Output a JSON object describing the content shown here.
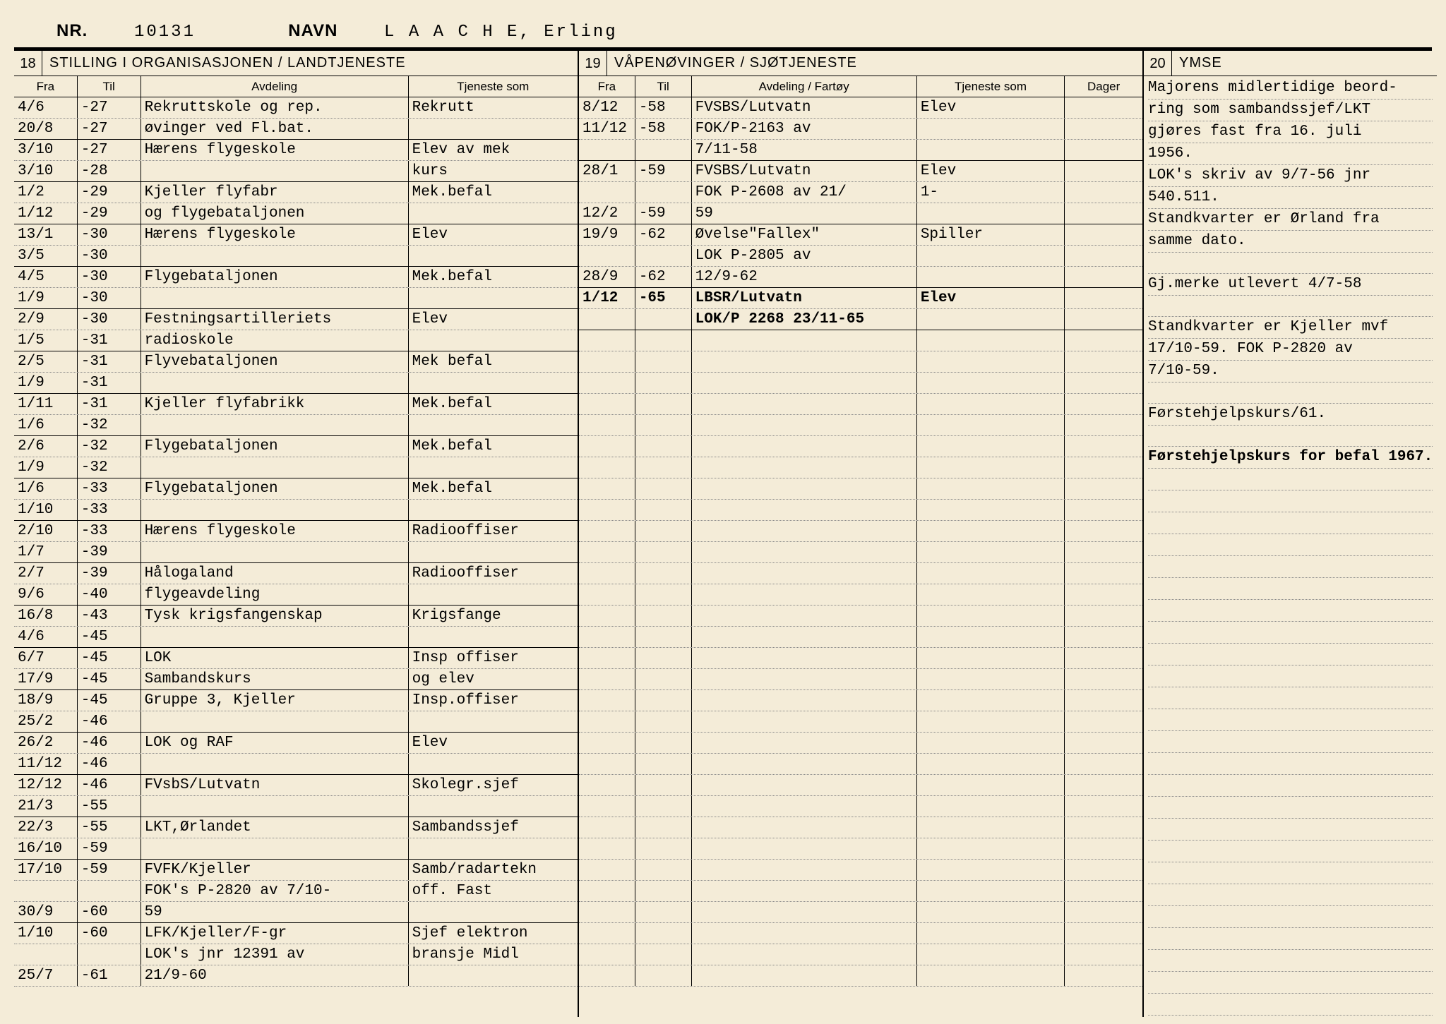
{
  "header": {
    "nr_label": "NR.",
    "nr_value": "10131",
    "navn_label": "NAVN",
    "navn_value": "L A A C H E, Erling"
  },
  "section18": {
    "num": "18",
    "title": "STILLING I ORGANISASJONEN / LANDTJENESTE",
    "cols": {
      "fra": "Fra",
      "til": "Til",
      "avdeling": "Avdeling",
      "tjeneste": "Tjeneste som"
    },
    "rows": [
      {
        "fra": "4/6",
        "til": "-27",
        "avd": "Rekruttskole og rep.",
        "tj": "Rekrutt"
      },
      {
        "fra": "20/8",
        "til": "-27",
        "avd": "øvinger ved Fl.bat.",
        "tj": "",
        "sep": true
      },
      {
        "fra": "3/10",
        "til": "-27",
        "avd": "Hærens flygeskole",
        "tj": "Elev av mek"
      },
      {
        "fra": "3/10",
        "til": "-28",
        "avd": "",
        "tj": "kurs",
        "sep": true
      },
      {
        "fra": "1/2",
        "til": "-29",
        "avd": "Kjeller flyfabr",
        "tj": "Mek.befal"
      },
      {
        "fra": "1/12",
        "til": "-29",
        "avd": "og flygebataljonen",
        "tj": "",
        "sep": true
      },
      {
        "fra": "13/1",
        "til": "-30",
        "avd": "Hærens flygeskole",
        "tj": "Elev"
      },
      {
        "fra": "3/5",
        "til": "-30",
        "avd": "",
        "tj": "",
        "sep": true
      },
      {
        "fra": "4/5",
        "til": "-30",
        "avd": "Flygebataljonen",
        "tj": "Mek.befal"
      },
      {
        "fra": "1/9",
        "til": "-30",
        "avd": "",
        "tj": "",
        "sep": true
      },
      {
        "fra": "2/9",
        "til": "-30",
        "avd": "Festningsartilleriets",
        "tj": "Elev"
      },
      {
        "fra": "1/5",
        "til": "-31",
        "avd": "radioskole",
        "tj": "",
        "sep": true
      },
      {
        "fra": "2/5",
        "til": "-31",
        "avd": "Flyvebataljonen",
        "tj": "Mek befal"
      },
      {
        "fra": "1/9",
        "til": "-31",
        "avd": "",
        "tj": "",
        "sep": true
      },
      {
        "fra": "1/11",
        "til": "-31",
        "avd": "Kjeller flyfabrikk",
        "tj": "Mek.befal"
      },
      {
        "fra": "1/6",
        "til": "-32",
        "avd": "",
        "tj": "",
        "sep": true
      },
      {
        "fra": "2/6",
        "til": "-32",
        "avd": "Flygebataljonen",
        "tj": "Mek.befal"
      },
      {
        "fra": "1/9",
        "til": "-32",
        "avd": "",
        "tj": "",
        "sep": true
      },
      {
        "fra": "1/6",
        "til": "-33",
        "avd": "Flygebataljonen",
        "tj": "Mek.befal"
      },
      {
        "fra": "1/10",
        "til": "-33",
        "avd": "",
        "tj": "",
        "sep": true
      },
      {
        "fra": "2/10",
        "til": "-33",
        "avd": "Hærens flygeskole",
        "tj": "Radiooffiser"
      },
      {
        "fra": "1/7",
        "til": "-39",
        "avd": "",
        "tj": "",
        "sep": true
      },
      {
        "fra": "2/7",
        "til": "-39",
        "avd": "Hålogaland",
        "tj": "Radiooffiser"
      },
      {
        "fra": "9/6",
        "til": "-40",
        "avd": "flygeavdeling",
        "tj": "",
        "sep": true
      },
      {
        "fra": "16/8",
        "til": "-43",
        "avd": "Tysk krigsfangenskap",
        "tj": "Krigsfange"
      },
      {
        "fra": "4/6",
        "til": "-45",
        "avd": "",
        "tj": "",
        "sep": true
      },
      {
        "fra": "6/7",
        "til": "-45",
        "avd": "LOK",
        "tj": "Insp offiser"
      },
      {
        "fra": "17/9",
        "til": "-45",
        "avd": "Sambandskurs",
        "tj": "og elev",
        "sep": true
      },
      {
        "fra": "18/9",
        "til": "-45",
        "avd": "Gruppe 3, Kjeller",
        "tj": "Insp.offiser"
      },
      {
        "fra": "25/2",
        "til": "-46",
        "avd": "",
        "tj": "",
        "sep": true
      },
      {
        "fra": "26/2",
        "til": "-46",
        "avd": "LOK og RAF",
        "tj": "Elev"
      },
      {
        "fra": "11/12",
        "til": "-46",
        "avd": "",
        "tj": "",
        "sep": true
      },
      {
        "fra": "12/12",
        "til": "-46",
        "avd": "FVsbS/Lutvatn",
        "tj": "Skolegr.sjef"
      },
      {
        "fra": "21/3",
        "til": "-55",
        "avd": "",
        "tj": "",
        "sep": true
      },
      {
        "fra": "22/3",
        "til": "-55",
        "avd": "LKT,Ørlandet",
        "tj": "Sambandssjef"
      },
      {
        "fra": "16/10",
        "til": "-59",
        "avd": "",
        "tj": "",
        "sep": true
      },
      {
        "fra": "17/10",
        "til": "-59",
        "avd": "FVFK/Kjeller",
        "tj": "Samb/radartekn"
      },
      {
        "fra": "",
        "til": "",
        "avd": "FOK's  P-2820 av 7/10-",
        "tj": "off.    Fast"
      },
      {
        "fra": "30/9",
        "til": "-60",
        "avd": "59",
        "tj": "",
        "sep": true
      },
      {
        "fra": "1/10",
        "til": "-60",
        "avd": "LFK/Kjeller/F-gr",
        "tj": "Sjef elektron"
      },
      {
        "fra": "",
        "til": "",
        "avd": "LOK's jnr 12391 av",
        "tj": "bransje  Midl"
      },
      {
        "fra": "25/7",
        "til": "-61",
        "avd": "21/9-60",
        "tj": ""
      }
    ]
  },
  "section19": {
    "num": "19",
    "title": "VÅPENØVINGER / SJØTJENESTE",
    "cols": {
      "fra": "Fra",
      "til": "Til",
      "avdeling": "Avdeling / Fartøy",
      "tjeneste": "Tjeneste som",
      "dager": "Dager"
    },
    "rows": [
      {
        "fra": "8/12",
        "til": "-58",
        "avd": "FVSBS/Lutvatn",
        "tj": "Elev",
        "dag": ""
      },
      {
        "fra": "11/12",
        "til": "-58",
        "avd": "FOK/P-2163 av",
        "tj": "",
        "dag": ""
      },
      {
        "fra": "",
        "til": "",
        "avd": "7/11-58",
        "tj": "",
        "dag": "",
        "sep": true
      },
      {
        "fra": "28/1",
        "til": "-59",
        "avd": "FVSBS/Lutvatn",
        "tj": "Elev",
        "dag": ""
      },
      {
        "fra": "",
        "til": "",
        "avd": "FOK P-2608 av 21/",
        "tj": "1-",
        "dag": ""
      },
      {
        "fra": "12/2",
        "til": "-59",
        "avd": "59",
        "tj": "",
        "dag": "",
        "sep": true
      },
      {
        "fra": "19/9",
        "til": "-62",
        "avd": "Øvelse\"Fallex\"",
        "tj": "Spiller",
        "dag": ""
      },
      {
        "fra": "",
        "til": "",
        "avd": "LOK P-2805 av",
        "tj": "",
        "dag": ""
      },
      {
        "fra": "28/9",
        "til": "-62",
        "avd": "12/9-62",
        "tj": "",
        "dag": "",
        "sep": true
      },
      {
        "fra": "1/12",
        "til": "-65",
        "avd": "LBSR/Lutvatn",
        "tj": "Elev",
        "dag": "",
        "bold": true
      },
      {
        "fra": "",
        "til": "",
        "avd": "LOK/P 2268 23/11-65",
        "tj": "",
        "dag": "",
        "sep": true,
        "bold": true
      }
    ],
    "blank_rows": 31
  },
  "section20": {
    "num": "20",
    "title": "YMSE",
    "lines": [
      "Majorens midlertidige beord-",
      "ring som sambandssjef/LKT",
      "gjøres fast fra 16. juli",
      "1956.",
      "LOK's skriv av 9/7-56 jnr",
      "540.511.",
      "Standkvarter er Ørland fra",
      "samme dato.",
      "",
      "Gj.merke utlevert 4/7-58",
      "",
      "Standkvarter er Kjeller mvf",
      "17/10-59. FOK P-2820 av",
      "7/10-59.",
      "",
      "Førstehjelpskurs/61.",
      "",
      "Førstehjelpskurs for befal 1967."
    ],
    "blank_lines": 25
  }
}
